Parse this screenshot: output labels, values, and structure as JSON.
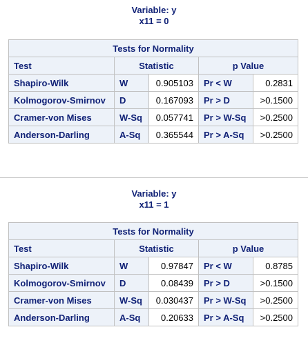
{
  "sections": [
    {
      "variable_label": "Variable: y",
      "group_label": "x11 = 0",
      "table_caption": "Tests for Normality",
      "headers": {
        "test": "Test",
        "statistic": "Statistic",
        "pvalue": "p Value"
      },
      "rows": [
        {
          "test": "Shapiro-Wilk",
          "stat_sym": "W",
          "stat_val": "0.905103",
          "p_label": "Pr < W",
          "p_val": "0.2831"
        },
        {
          "test": "Kolmogorov-Smirnov",
          "stat_sym": "D",
          "stat_val": "0.167093",
          "p_label": "Pr > D",
          "p_val": ">0.1500"
        },
        {
          "test": "Cramer-von Mises",
          "stat_sym": "W-Sq",
          "stat_val": "0.057741",
          "p_label": "Pr > W-Sq",
          "p_val": ">0.2500"
        },
        {
          "test": "Anderson-Darling",
          "stat_sym": "A-Sq",
          "stat_val": "0.365544",
          "p_label": "Pr > A-Sq",
          "p_val": ">0.2500"
        }
      ]
    },
    {
      "variable_label": "Variable: y",
      "group_label": "x11 = 1",
      "table_caption": "Tests for Normality",
      "headers": {
        "test": "Test",
        "statistic": "Statistic",
        "pvalue": "p Value"
      },
      "rows": [
        {
          "test": "Shapiro-Wilk",
          "stat_sym": "W",
          "stat_val": "0.97847",
          "p_label": "Pr < W",
          "p_val": "0.8785"
        },
        {
          "test": "Kolmogorov-Smirnov",
          "stat_sym": "D",
          "stat_val": "0.08439",
          "p_label": "Pr > D",
          "p_val": ">0.1500"
        },
        {
          "test": "Cramer-von Mises",
          "stat_sym": "W-Sq",
          "stat_val": "0.030437",
          "p_label": "Pr > W-Sq",
          "p_val": ">0.2500"
        },
        {
          "test": "Anderson-Darling",
          "stat_sym": "A-Sq",
          "stat_val": "0.20633",
          "p_label": "Pr > A-Sq",
          "p_val": ">0.2500"
        }
      ]
    }
  ],
  "colors": {
    "header_text": "#112277",
    "header_bg": "#edf2f9",
    "border": "#c1c1c1",
    "value_text": "#000000",
    "divider": "#c8c8c8"
  }
}
